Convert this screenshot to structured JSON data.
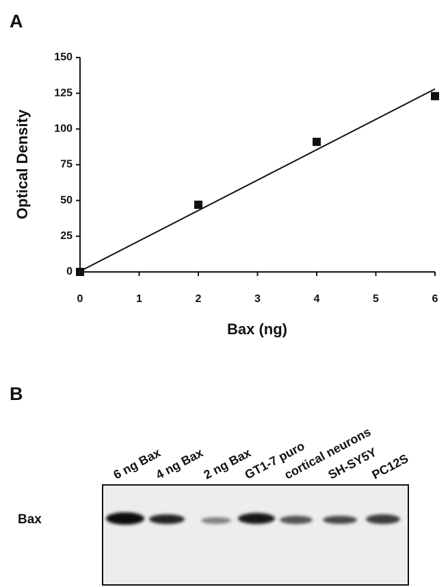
{
  "panel_a": {
    "label": "A"
  },
  "chart_data": {
    "type": "scatter",
    "x_label": "Bax (ng)",
    "y_label": "Optical Density",
    "x": [
      0,
      2,
      4,
      6
    ],
    "values": [
      0,
      47,
      91,
      123
    ],
    "color": "#111111",
    "fit_line": {
      "x": [
        0,
        6
      ],
      "values": [
        0.5,
        128
      ]
    },
    "xlim": [
      0,
      6
    ],
    "xticks": [
      0,
      1,
      2,
      3,
      4,
      5,
      6
    ],
    "ylim": [
      0,
      150
    ],
    "yticks": [
      0,
      25,
      50,
      75,
      100,
      125,
      150
    ]
  },
  "panel_b": {
    "label": "B",
    "row_label": "Bax",
    "lanes": [
      "6 ng Bax",
      "4 ng Bax",
      "2 ng Bax",
      "GT1-7 puro",
      "cortical neurons",
      "SH-SY5Y",
      "PC12S"
    ]
  }
}
